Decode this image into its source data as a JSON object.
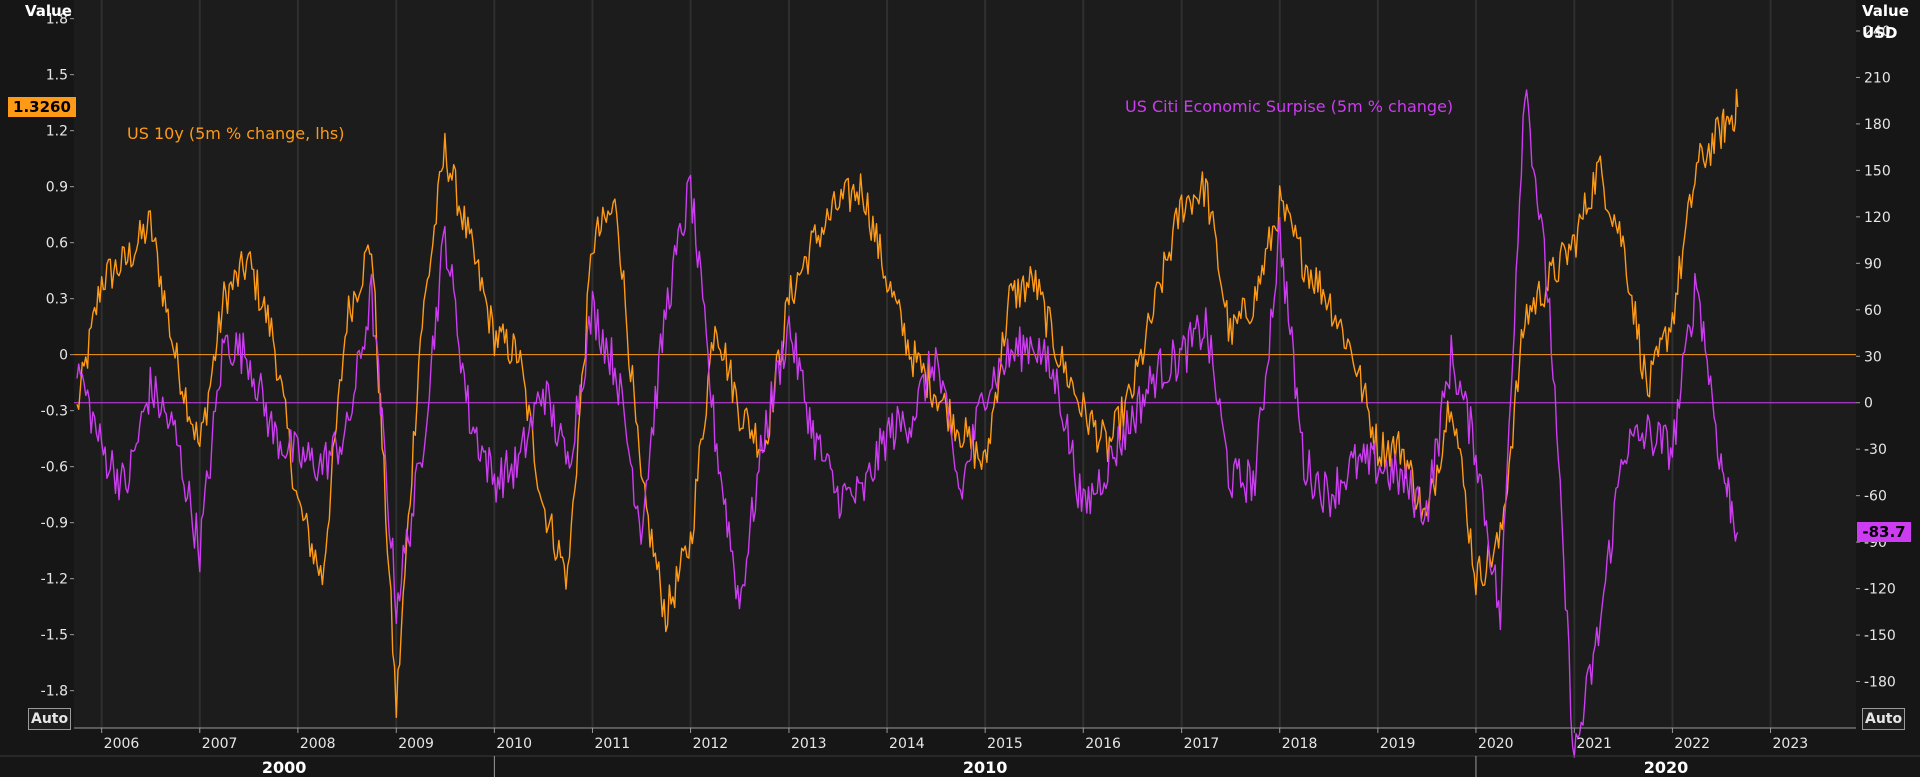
{
  "left_axis": {
    "title": "Value",
    "auto_label": "Auto"
  },
  "right_axis": {
    "title": "Value",
    "unit": "USD",
    "auto_label": "Auto"
  },
  "badges": {
    "left_value": "1.3260",
    "right_value": "-83.7"
  },
  "colors": {
    "series1": "#ff9a17",
    "series2": "#cc3cf0",
    "background": "#1c1c1c",
    "grid": "#2f2f2f"
  },
  "decades": [
    "2000",
    "2010",
    "2020"
  ],
  "chart_data": {
    "type": "line",
    "x": [
      "2005-10-01",
      "2006-01-01",
      "2006-04-01",
      "2006-07-01",
      "2006-10-01",
      "2007-01-01",
      "2007-04-01",
      "2007-07-01",
      "2007-10-01",
      "2008-01-01",
      "2008-04-01",
      "2008-07-01",
      "2008-10-01",
      "2009-01-01",
      "2009-04-01",
      "2009-07-01",
      "2009-10-01",
      "2010-01-01",
      "2010-04-01",
      "2010-07-01",
      "2010-10-01",
      "2011-01-01",
      "2011-04-01",
      "2011-07-01",
      "2011-10-01",
      "2012-01-01",
      "2012-04-01",
      "2012-07-01",
      "2012-10-01",
      "2013-01-01",
      "2013-04-01",
      "2013-07-01",
      "2013-10-01",
      "2014-01-01",
      "2014-04-01",
      "2014-07-01",
      "2014-10-01",
      "2015-01-01",
      "2015-04-01",
      "2015-07-01",
      "2015-10-01",
      "2016-01-01",
      "2016-04-01",
      "2016-07-01",
      "2016-10-01",
      "2017-01-01",
      "2017-04-01",
      "2017-07-01",
      "2017-10-01",
      "2018-01-01",
      "2018-04-01",
      "2018-07-01",
      "2018-10-01",
      "2019-01-01",
      "2019-04-01",
      "2019-07-01",
      "2019-10-01",
      "2020-01-01",
      "2020-04-01",
      "2020-07-01",
      "2020-10-01",
      "2021-01-01",
      "2021-04-01",
      "2021-07-01",
      "2021-10-01",
      "2022-01-01",
      "2022-04-01",
      "2022-07-01",
      "2022-09-01"
    ],
    "series": [
      {
        "name": "US 10y (5m % change, lhs)",
        "axis": "left",
        "values": [
          -0.3,
          0.4,
          0.5,
          0.7,
          0.0,
          -0.5,
          0.3,
          0.5,
          0.1,
          -0.8,
          -1.2,
          0.2,
          0.6,
          -1.9,
          0.1,
          1.1,
          0.6,
          0.1,
          0.0,
          -0.8,
          -1.2,
          0.6,
          0.8,
          -0.7,
          -1.4,
          -1.0,
          0.2,
          -0.3,
          -0.5,
          0.3,
          0.6,
          0.8,
          0.9,
          0.4,
          0.0,
          -0.2,
          -0.4,
          -0.6,
          0.3,
          0.4,
          0.0,
          -0.3,
          -0.5,
          -0.2,
          0.3,
          0.8,
          0.9,
          0.1,
          0.3,
          0.8,
          0.5,
          0.3,
          0.0,
          -0.5,
          -0.5,
          -0.9,
          -0.2,
          -1.2,
          -1.0,
          0.2,
          0.4,
          0.6,
          1.0,
          0.6,
          -0.2,
          0.2,
          1.0,
          1.2,
          1.326
        ]
      },
      {
        "name": "US Citi Economic Surpise (5m % change)",
        "axis": "right",
        "values": [
          25,
          -30,
          -55,
          10,
          -20,
          -95,
          40,
          30,
          -20,
          -35,
          -40,
          -20,
          70,
          -130,
          -40,
          110,
          -10,
          -50,
          -40,
          10,
          -40,
          60,
          20,
          -80,
          60,
          140,
          -20,
          -130,
          -20,
          50,
          -20,
          -60,
          -60,
          -20,
          -10,
          30,
          -60,
          10,
          30,
          40,
          10,
          -70,
          -40,
          -10,
          20,
          30,
          50,
          -50,
          -50,
          110,
          -40,
          -60,
          -40,
          -40,
          -50,
          -70,
          30,
          -30,
          -140,
          210,
          60,
          -230,
          -150,
          -30,
          -20,
          -30,
          80,
          -40,
          -83.7
        ]
      }
    ],
    "ylim_left": [
      -2.0,
      1.9
    ],
    "ylim_right": [
      -210,
      260
    ],
    "yticks_left": [
      "1.8",
      "1.5",
      "1.2",
      "0.9",
      "0.6",
      "0.3",
      "0",
      "-0.3",
      "-0.6",
      "-0.9",
      "-1.2",
      "-1.5",
      "-1.8"
    ],
    "yticks_right": [
      "240",
      "210",
      "180",
      "150",
      "120",
      "90",
      "60",
      "30",
      "0",
      "-30",
      "-60",
      "-90",
      "-120",
      "-150",
      "-180"
    ],
    "xticks": [
      "2006",
      "2007",
      "2008",
      "2009",
      "2010",
      "2011",
      "2012",
      "2013",
      "2014",
      "2015",
      "2016",
      "2017",
      "2018",
      "2019",
      "2020",
      "2021",
      "2022",
      "2023"
    ],
    "grid": true,
    "legend": "inline labels"
  }
}
